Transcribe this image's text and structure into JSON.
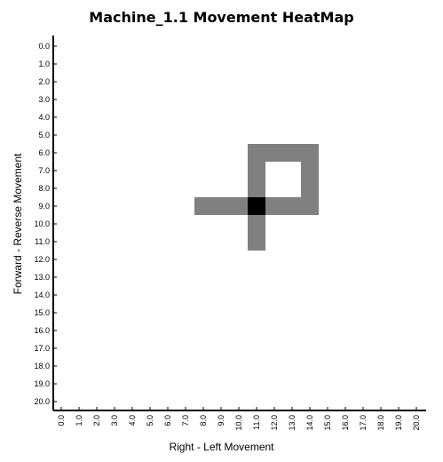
{
  "chart_data": {
    "type": "heatmap",
    "title": "Machine_1.1 Movement HeatMap",
    "xlabel": "Right - Left Movement",
    "ylabel": "Forward - Reverse Movement",
    "x_ticks": [
      "0.0",
      "1.0",
      "2.0",
      "3.0",
      "4.0",
      "5.0",
      "6.0",
      "7.0",
      "8.0",
      "9.0",
      "10.0",
      "11.0",
      "12.0",
      "13.0",
      "14.0",
      "15.0",
      "16.0",
      "17.0",
      "18.0",
      "19.0",
      "20.0"
    ],
    "y_ticks": [
      "0.0",
      "1.0",
      "2.0",
      "3.0",
      "4.0",
      "5.0",
      "6.0",
      "7.0",
      "8.0",
      "9.0",
      "10.0",
      "11.0",
      "12.0",
      "13.0",
      "14.0",
      "15.0",
      "16.0",
      "17.0",
      "18.0",
      "19.0",
      "20.0"
    ],
    "xlim": [
      0,
      20
    ],
    "ylim": [
      0,
      20
    ],
    "grid": false,
    "colors": {
      "low": "#808080",
      "high": "#000000",
      "background": "#ffffff"
    },
    "cells": [
      {
        "x": 11,
        "y": 6,
        "value": 1
      },
      {
        "x": 12,
        "y": 6,
        "value": 1
      },
      {
        "x": 13,
        "y": 6,
        "value": 1
      },
      {
        "x": 14,
        "y": 6,
        "value": 1
      },
      {
        "x": 11,
        "y": 7,
        "value": 1
      },
      {
        "x": 14,
        "y": 7,
        "value": 1
      },
      {
        "x": 11,
        "y": 8,
        "value": 1
      },
      {
        "x": 14,
        "y": 8,
        "value": 1
      },
      {
        "x": 8,
        "y": 9,
        "value": 1
      },
      {
        "x": 9,
        "y": 9,
        "value": 1
      },
      {
        "x": 10,
        "y": 9,
        "value": 1
      },
      {
        "x": 11,
        "y": 9,
        "value": 2
      },
      {
        "x": 12,
        "y": 9,
        "value": 1
      },
      {
        "x": 13,
        "y": 9,
        "value": 1
      },
      {
        "x": 14,
        "y": 9,
        "value": 1
      },
      {
        "x": 11,
        "y": 10,
        "value": 1
      },
      {
        "x": 11,
        "y": 11,
        "value": 1
      }
    ]
  }
}
